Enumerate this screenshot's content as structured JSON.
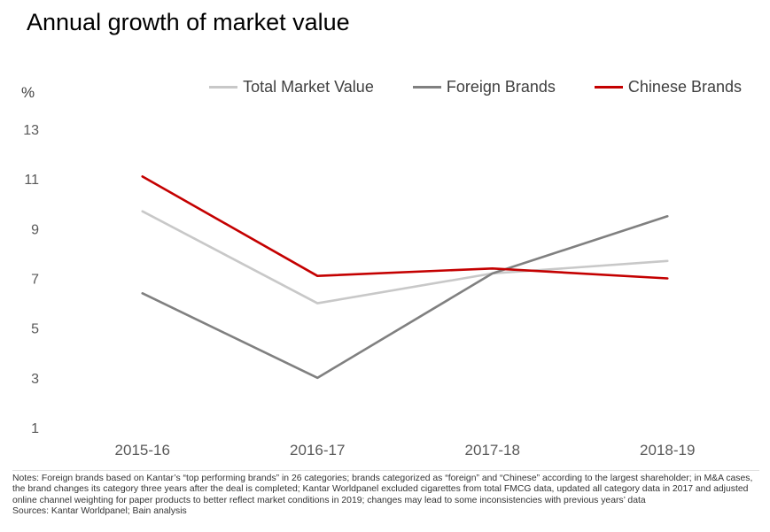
{
  "page": {
    "title": "Annual growth of market value"
  },
  "chart_data": {
    "type": "line",
    "title": "Annual growth of market value",
    "categories": [
      "2015-16",
      "2016-17",
      "2017-18",
      "2018-19"
    ],
    "series": [
      {
        "name": "Total Market Value",
        "color": "#c8c8c8",
        "values": [
          9.7,
          6.0,
          7.2,
          7.7
        ]
      },
      {
        "name": "Foreign Brands",
        "color": "#808080",
        "values": [
          6.4,
          3.0,
          7.2,
          9.5
        ]
      },
      {
        "name": "Chinese Brands",
        "color": "#c40000",
        "values": [
          11.1,
          7.1,
          7.4,
          7.0
        ]
      }
    ],
    "xlabel": "",
    "ylabel": "%",
    "yticks": [
      1,
      3,
      5,
      7,
      9,
      11,
      13
    ],
    "ylim": [
      1,
      13
    ],
    "grid": false,
    "legend_position": "top"
  },
  "footer": {
    "notes": "Notes: Foreign brands based on Kantar’s “top performing brands” in 26 categories; brands categorized as “foreign” and “Chinese” according to the largest shareholder; in M&A cases, the brand changes its category three years after the deal is completed; Kantar Worldpanel excluded cigarettes from total FMCG data, updated all category data in 2017 and adjusted online channel weighting for paper products to better reflect market conditions in 2019; changes may lead to some inconsistencies with previous years’ data",
    "sources": "Sources: Kantar Worldpanel; Bain analysis"
  }
}
